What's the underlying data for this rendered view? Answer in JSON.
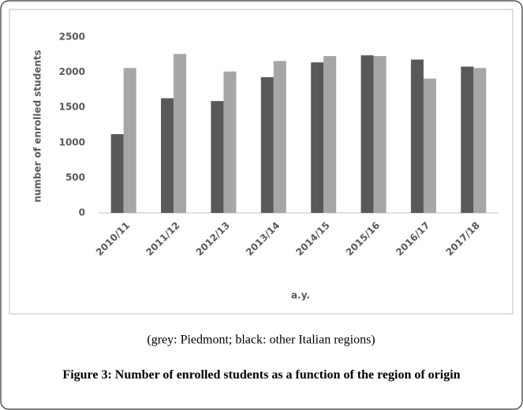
{
  "chart_data": {
    "type": "bar",
    "categories": [
      "2010/11",
      "2011/12",
      "2012/13",
      "2013/14",
      "2014/15",
      "2015/16",
      "2016/17",
      "2017/18"
    ],
    "series": [
      {
        "color": "#595959",
        "values": [
          1120,
          1630,
          1590,
          1930,
          2140,
          2240,
          2180,
          2080
        ]
      },
      {
        "color": "#a6a6a6",
        "values": [
          2060,
          2260,
          2010,
          2160,
          2230,
          2230,
          1910,
          2060
        ]
      }
    ],
    "ylim": [
      0,
      2500
    ],
    "yticks": [
      0,
      500,
      1000,
      1500,
      2000,
      2500
    ],
    "grid": false,
    "y_label": "number of enrolled students",
    "x_label": "a.y.",
    "note": "(grey: Piedmont; black: other Italian regions)",
    "caption": "Figure 3: Number of enrolled students as a function of the region of origin"
  }
}
